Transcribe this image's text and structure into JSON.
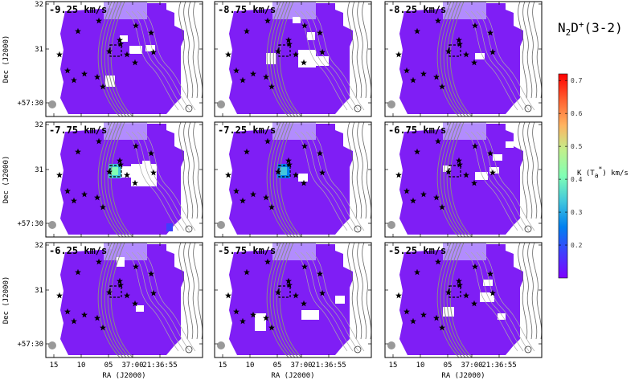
{
  "figure": {
    "title_main": "N",
    "title_sub": "2",
    "title_mid": "D",
    "title_sup": "+",
    "title_tail": "(3-2)"
  },
  "chart_data": {
    "type": "heatmap",
    "panel_labels": [
      "-9.25 km/s",
      "-8.75 km/s",
      "-8.25 km/s",
      "-7.75 km/s",
      "-7.25 km/s",
      "-6.75 km/s",
      "-6.25 km/s",
      "-5.75 km/s",
      "-5.25 km/s"
    ],
    "x_axis": {
      "label": "RA (J2000)",
      "ticks": [
        "15",
        "10",
        "05",
        "37:00",
        "21:36:55"
      ]
    },
    "y_axis": {
      "label": "Dec (J2000)",
      "ticks": [
        "32",
        "31",
        "+57:30"
      ]
    },
    "colorbar": {
      "label": "K (T",
      "label_sub": "a",
      "label_sup": "*",
      "label_tail": ") km/s",
      "ticks": [
        0.2,
        0.3,
        0.4,
        0.5,
        0.6,
        0.7
      ],
      "range": [
        0.1,
        0.72
      ],
      "colors": [
        "#7f00ff",
        "#3f3ffd",
        "#0080f0",
        "#41c7dd",
        "#80ffb4",
        "#c1f08c",
        "#ffb360",
        "#ff5f2f",
        "#ff0000"
      ]
    },
    "map_color": "#7f1ef5",
    "contour_color": "#888888",
    "peak_values": [
      0.1,
      0.1,
      0.1,
      0.4,
      0.3,
      0.1,
      0.1,
      0.1,
      0.1
    ]
  }
}
